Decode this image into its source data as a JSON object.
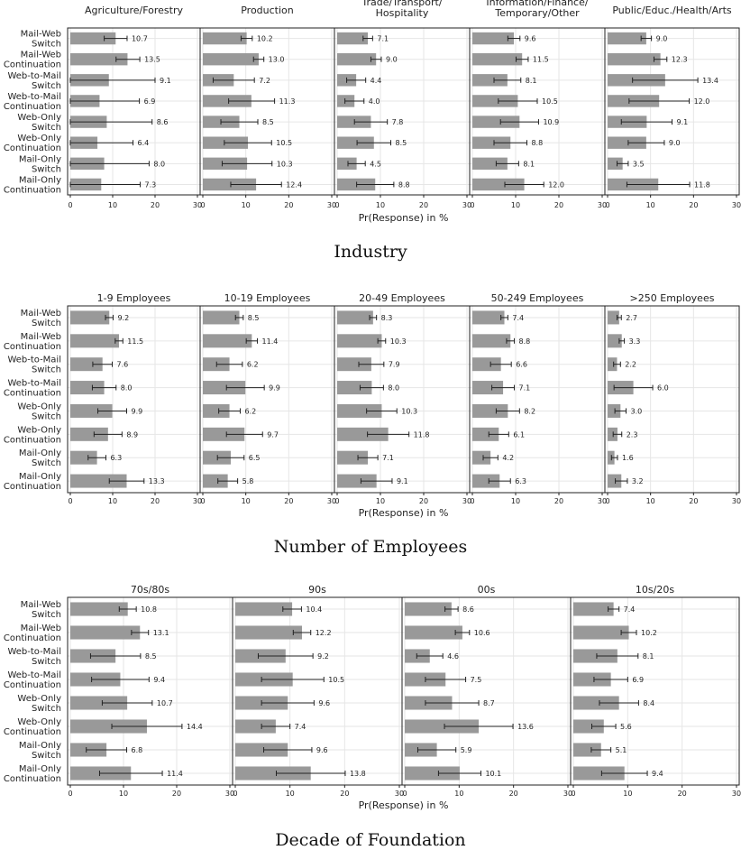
{
  "ylabels": [
    [
      "Mail-Web",
      "Switch"
    ],
    [
      "Mail-Web",
      "Continuation"
    ],
    [
      "Web-to-Mail",
      "Switch"
    ],
    [
      "Web-to-Mail",
      "Continuation"
    ],
    [
      "Web-Only",
      "Switch"
    ],
    [
      "Web-Only",
      "Continuation"
    ],
    [
      "Mail-Only",
      "Switch"
    ],
    [
      "Mail-Only",
      "Continuation"
    ]
  ],
  "xlabel": "Pr(Response) in %",
  "xticks": [
    0,
    10,
    20,
    30
  ],
  "colors": {
    "bar": "#999999",
    "grid": "#e6e6e6",
    "axis": "#222222",
    "errorbar": "#222222"
  },
  "chart_data": [
    {
      "type": "bar",
      "caption": "Industry",
      "xlabel": "Pr(Response) in %",
      "xlim": [
        0,
        30
      ],
      "panels": [
        {
          "title": "Agriculture/Forestry",
          "values": [
            10.7,
            13.5,
            9.1,
            6.9,
            8.6,
            6.4,
            8.0,
            7.3
          ],
          "ci_low": [
            8.0,
            10.8,
            0,
            0,
            0,
            0,
            0,
            0
          ],
          "ci_high": [
            13.4,
            16.4,
            20.0,
            16.3,
            19.3,
            14.8,
            18.6,
            16.5
          ]
        },
        {
          "title": "Production",
          "values": [
            10.2,
            13.0,
            7.2,
            11.3,
            8.5,
            10.5,
            10.3,
            12.4
          ],
          "ci_low": [
            8.9,
            11.8,
            2.4,
            6.0,
            4.2,
            5.0,
            4.5,
            6.5
          ],
          "ci_high": [
            11.5,
            14.2,
            12.0,
            16.7,
            12.8,
            16.0,
            16.1,
            18.3
          ]
        },
        {
          "title": "Trade/Transport/\nHospitality",
          "values": [
            7.1,
            9.0,
            4.4,
            4.0,
            7.8,
            8.5,
            4.5,
            8.8
          ],
          "ci_low": [
            6.0,
            7.8,
            2.2,
            1.8,
            4.0,
            4.6,
            2.5,
            4.5
          ],
          "ci_high": [
            8.2,
            10.2,
            6.6,
            6.2,
            11.6,
            12.4,
            6.5,
            13.1
          ]
        },
        {
          "title": "Information/Finance/\nTemporary/Other",
          "values": [
            9.6,
            11.5,
            8.1,
            10.5,
            10.9,
            8.8,
            8.1,
            12.0
          ],
          "ci_low": [
            8.2,
            10.1,
            5.0,
            6.0,
            6.5,
            5.0,
            5.5,
            7.5
          ],
          "ci_high": [
            11.0,
            12.9,
            11.2,
            15.0,
            15.3,
            12.6,
            10.7,
            16.5
          ]
        },
        {
          "title": "Public/Educ./Health/Arts",
          "values": [
            9.0,
            12.3,
            13.4,
            12.0,
            9.1,
            9.0,
            3.5,
            11.8
          ],
          "ci_low": [
            7.8,
            10.8,
            5.8,
            5.0,
            3.2,
            4.8,
            2.2,
            4.5
          ],
          "ci_high": [
            10.2,
            13.8,
            21.0,
            19.0,
            15.0,
            13.2,
            4.8,
            19.1
          ]
        }
      ]
    },
    {
      "type": "bar",
      "caption": "Number of Employees",
      "xlabel": "Pr(Response) in %",
      "xlim": [
        0,
        30
      ],
      "panels": [
        {
          "title": "1-9 Employees",
          "values": [
            9.2,
            11.5,
            7.6,
            8.0,
            9.9,
            8.9,
            6.3,
            13.3
          ],
          "ci_low": [
            8.3,
            10.6,
            5.3,
            5.2,
            6.5,
            5.6,
            4.2,
            9.2
          ],
          "ci_high": [
            10.1,
            12.4,
            9.9,
            10.8,
            13.3,
            12.2,
            8.4,
            17.4
          ]
        },
        {
          "title": "10-19 Employees",
          "values": [
            8.5,
            11.4,
            6.2,
            9.9,
            6.2,
            9.7,
            6.5,
            5.8
          ],
          "ci_low": [
            7.6,
            10.1,
            3.2,
            5.5,
            3.7,
            5.5,
            3.4,
            3.5
          ],
          "ci_high": [
            9.4,
            12.7,
            9.2,
            14.3,
            8.7,
            13.9,
            9.6,
            8.1
          ]
        },
        {
          "title": "20-49 Employees",
          "values": [
            8.3,
            10.3,
            7.9,
            8.0,
            10.3,
            11.8,
            7.1,
            9.1
          ],
          "ci_low": [
            7.5,
            9.4,
            5.0,
            5.3,
            6.8,
            7.0,
            4.8,
            5.5
          ],
          "ci_high": [
            9.1,
            11.2,
            10.8,
            10.7,
            13.8,
            16.6,
            9.4,
            12.7
          ]
        },
        {
          "title": "50-249 Employees",
          "values": [
            7.4,
            8.8,
            6.6,
            7.1,
            8.2,
            6.1,
            4.2,
            6.3
          ],
          "ci_low": [
            6.6,
            7.9,
            4.2,
            4.5,
            5.5,
            3.8,
            2.5,
            3.8
          ],
          "ci_high": [
            8.2,
            9.7,
            9.0,
            9.7,
            10.9,
            8.4,
            5.9,
            8.8
          ]
        },
        {
          "title": ">250 Employees",
          "values": [
            2.7,
            3.3,
            2.2,
            6.0,
            3.0,
            2.3,
            1.6,
            3.2
          ],
          "ci_low": [
            2.2,
            2.7,
            1.4,
            1.5,
            1.7,
            1.3,
            0.9,
            1.8
          ],
          "ci_high": [
            3.2,
            3.9,
            3.0,
            10.5,
            4.3,
            3.3,
            2.3,
            4.6
          ]
        }
      ]
    },
    {
      "type": "bar",
      "caption": "Decade of Foundation",
      "xlabel": "Pr(Response) in %",
      "xlim": [
        0,
        30
      ],
      "panels": [
        {
          "title": "70s/80s",
          "values": [
            10.8,
            13.1,
            8.5,
            9.4,
            10.7,
            14.4,
            6.8,
            11.4
          ],
          "ci_low": [
            9.2,
            11.5,
            3.8,
            4.0,
            6.0,
            7.8,
            3.0,
            5.5
          ],
          "ci_high": [
            12.4,
            14.7,
            13.2,
            14.8,
            15.4,
            21.0,
            10.6,
            17.3
          ]
        },
        {
          "title": "90s",
          "values": [
            10.4,
            12.2,
            9.2,
            10.5,
            9.6,
            7.4,
            9.6,
            13.8
          ],
          "ci_low": [
            8.7,
            10.6,
            4.2,
            4.8,
            4.8,
            4.8,
            5.2,
            7.5
          ],
          "ci_high": [
            12.1,
            13.8,
            14.2,
            16.2,
            14.4,
            10.0,
            14.0,
            20.1
          ]
        },
        {
          "title": "00s",
          "values": [
            8.6,
            10.6,
            4.6,
            7.5,
            8.7,
            13.6,
            5.9,
            10.1
          ],
          "ci_low": [
            7.4,
            9.3,
            2.2,
            3.8,
            3.8,
            7.3,
            2.4,
            6.2
          ],
          "ci_high": [
            9.8,
            11.9,
            7.0,
            11.2,
            13.6,
            19.9,
            9.4,
            14.0
          ]
        },
        {
          "title": "10s/20s",
          "values": [
            7.4,
            10.2,
            8.1,
            6.9,
            8.4,
            5.6,
            5.1,
            9.4
          ],
          "ci_low": [
            6.4,
            8.8,
            4.3,
            3.8,
            4.8,
            3.4,
            3.3,
            5.2
          ],
          "ci_high": [
            8.4,
            11.6,
            11.9,
            10.0,
            12.0,
            7.8,
            6.9,
            13.6
          ]
        }
      ]
    }
  ]
}
